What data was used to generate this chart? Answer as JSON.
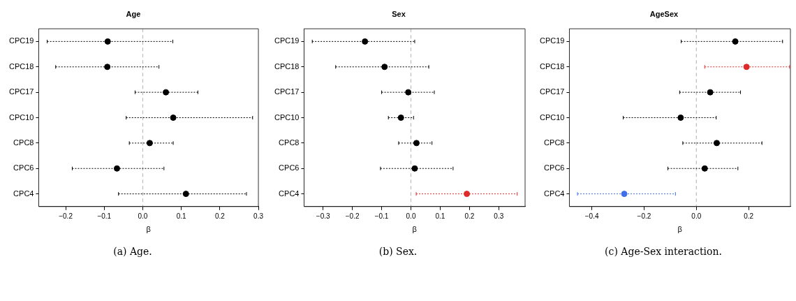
{
  "chart_data": [
    {
      "type": "scatter",
      "title": "Age",
      "xlabel": "β",
      "orientation": "horizontal",
      "marker": "circle",
      "grid": false,
      "categories": [
        "CPC19",
        "CPC18",
        "CPC17",
        "CPC10",
        "CPC8",
        "CPC6",
        "CPC4"
      ],
      "values": [
        -0.091,
        -0.092,
        0.06,
        0.079,
        0.018,
        -0.067,
        0.112
      ],
      "errors": [
        [
          -0.248,
          0.078
        ],
        [
          -0.226,
          0.042
        ],
        [
          -0.02,
          0.143
        ],
        [
          -0.043,
          0.285
        ],
        [
          -0.035,
          0.079
        ],
        [
          -0.183,
          0.055
        ],
        [
          -0.063,
          0.269
        ]
      ],
      "colors": [
        "#000000",
        "#000000",
        "#000000",
        "#000000",
        "#000000",
        "#000000",
        "#000000"
      ],
      "xlim": [
        -0.27,
        0.3
      ],
      "xticks": [
        {
          "value": -0.2,
          "label": "−0.2"
        },
        {
          "value": -0.1,
          "label": "−0.1"
        },
        {
          "value": 0,
          "label": "0.0"
        },
        {
          "value": 0.1,
          "label": "0.1"
        },
        {
          "value": 0.2,
          "label": "0.2"
        },
        {
          "value": 0.3,
          "label": "0.3"
        }
      ],
      "ref_lines": [
        {
          "axis": "x",
          "value": 0,
          "color": "#bbbbbb",
          "line_style": "dashed"
        }
      ],
      "annotations": [
        "(a) Age."
      ]
    },
    {
      "type": "scatter",
      "title": "Sex",
      "xlabel": "β",
      "orientation": "horizontal",
      "marker": "circle",
      "grid": false,
      "categories": [
        "CPC19",
        "CPC18",
        "CPC17",
        "CPC10",
        "CPC8",
        "CPC6",
        "CPC4"
      ],
      "values": [
        -0.157,
        -0.09,
        -0.009,
        -0.034,
        0.019,
        0.013,
        0.191
      ],
      "errors": [
        [
          -0.337,
          0.013
        ],
        [
          -0.257,
          0.061
        ],
        [
          -0.1,
          0.08
        ],
        [
          -0.077,
          0.009
        ],
        [
          -0.042,
          0.072
        ],
        [
          -0.104,
          0.144
        ],
        [
          0.018,
          0.363
        ]
      ],
      "colors": [
        "#000000",
        "#000000",
        "#000000",
        "#000000",
        "#000000",
        "#000000",
        "#df2a2a"
      ],
      "xlim": [
        -0.365,
        0.39
      ],
      "xticks": [
        {
          "value": -0.3,
          "label": "−0.3"
        },
        {
          "value": -0.2,
          "label": "−0.2"
        },
        {
          "value": -0.1,
          "label": "−0.1"
        },
        {
          "value": 0,
          "label": "0.0"
        },
        {
          "value": 0.1,
          "label": "0.1"
        },
        {
          "value": 0.2,
          "label": "0.2"
        },
        {
          "value": 0.3,
          "label": "0.3"
        }
      ],
      "ref_lines": [
        {
          "axis": "x",
          "value": 0,
          "color": "#bbbbbb",
          "line_style": "dashed"
        }
      ],
      "annotations": [
        "(b) Sex."
      ]
    },
    {
      "type": "scatter",
      "title": "AgeSex",
      "xlabel": "β",
      "orientation": "horizontal",
      "marker": "circle",
      "grid": false,
      "categories": [
        "CPC19",
        "CPC18",
        "CPC17",
        "CPC10",
        "CPC8",
        "CPC6",
        "CPC4"
      ],
      "values": [
        0.149,
        0.192,
        0.053,
        -0.06,
        0.078,
        0.032,
        -0.276
      ],
      "errors": [
        [
          -0.058,
          0.33
        ],
        [
          0.032,
          0.357
        ],
        [
          -0.064,
          0.169
        ],
        [
          -0.28,
          0.076
        ],
        [
          -0.052,
          0.251
        ],
        [
          -0.109,
          0.159
        ],
        [
          -0.455,
          -0.08
        ]
      ],
      "colors": [
        "#000000",
        "#df2a2a",
        "#000000",
        "#000000",
        "#000000",
        "#000000",
        "#3f6fe8"
      ],
      "xlim": [
        -0.486,
        0.36
      ],
      "xticks": [
        {
          "value": -0.4,
          "label": "−0.4"
        },
        {
          "value": -0.2,
          "label": "−0.2"
        },
        {
          "value": 0,
          "label": "0.0"
        },
        {
          "value": 0.2,
          "label": "0.2"
        }
      ],
      "ref_lines": [
        {
          "axis": "x",
          "value": 0,
          "color": "#bbbbbb",
          "line_style": "dashed"
        }
      ],
      "annotations": [
        "(c) Age-Sex interaction."
      ]
    }
  ]
}
